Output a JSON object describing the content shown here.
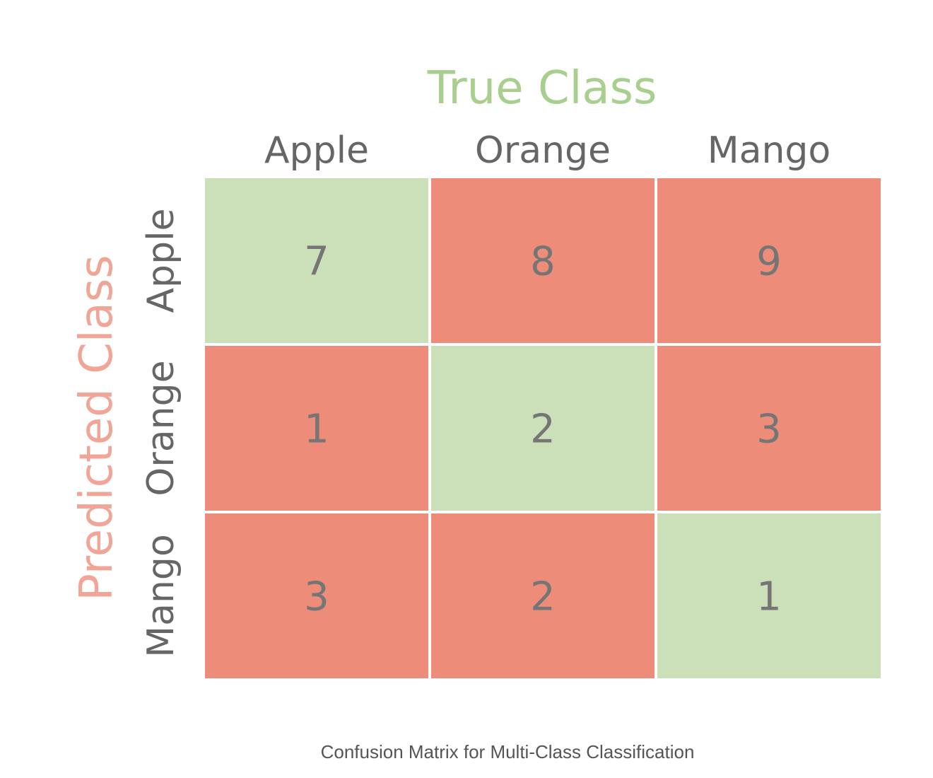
{
  "chart_data": {
    "type": "heatmap",
    "x_title": "True Class",
    "y_title": "Predicted Class",
    "columns": [
      "Apple",
      "Orange",
      "Mango"
    ],
    "rows": [
      "Apple",
      "Orange",
      "Mango"
    ],
    "values": [
      [
        7,
        8,
        9
      ],
      [
        1,
        2,
        3
      ],
      [
        3,
        2,
        1
      ]
    ],
    "caption": "Confusion Matrix for Multi-Class Classification"
  },
  "colors": {
    "correct": "#cbdfb8",
    "incorrect": "#ec8c79",
    "x_title": "#a9cf8e",
    "y_title": "#f0a597",
    "label_text": "#666666",
    "value_text": "#757575",
    "caption_text": "#555555"
  }
}
